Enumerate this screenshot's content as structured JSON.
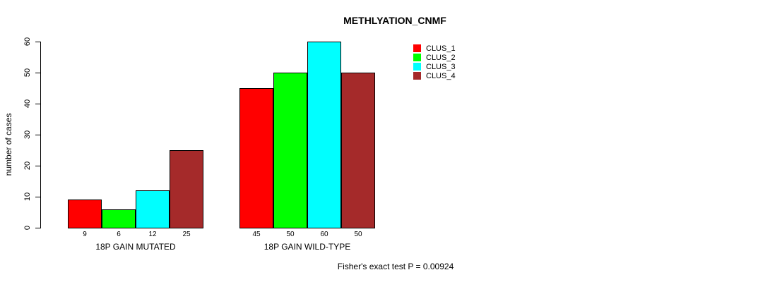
{
  "chart_data": {
    "type": "bar",
    "title": "METHLYATION_CNMF",
    "ylabel": "number of cases",
    "ylim": [
      0,
      60
    ],
    "yticks": [
      0,
      10,
      20,
      30,
      40,
      50,
      60
    ],
    "categories": [
      "18P GAIN MUTATED",
      "18P GAIN WILD-TYPE"
    ],
    "series": [
      {
        "name": "CLUS_1",
        "color": "#ff0000",
        "values": [
          9,
          45
        ]
      },
      {
        "name": "CLUS_2",
        "color": "#00ff00",
        "values": [
          6,
          50
        ]
      },
      {
        "name": "CLUS_3",
        "color": "#00ffff",
        "values": [
          12,
          60
        ]
      },
      {
        "name": "CLUS_4",
        "color": "#a52a2a",
        "values": [
          25,
          50
        ]
      }
    ],
    "bar_value_labels": [
      [
        "9",
        "6",
        "12",
        "25"
      ],
      [
        "45",
        "50",
        "60",
        "50"
      ]
    ],
    "legend_position": "right",
    "grid": false,
    "annotation": "Fisher's exact test P = 0.00924"
  }
}
